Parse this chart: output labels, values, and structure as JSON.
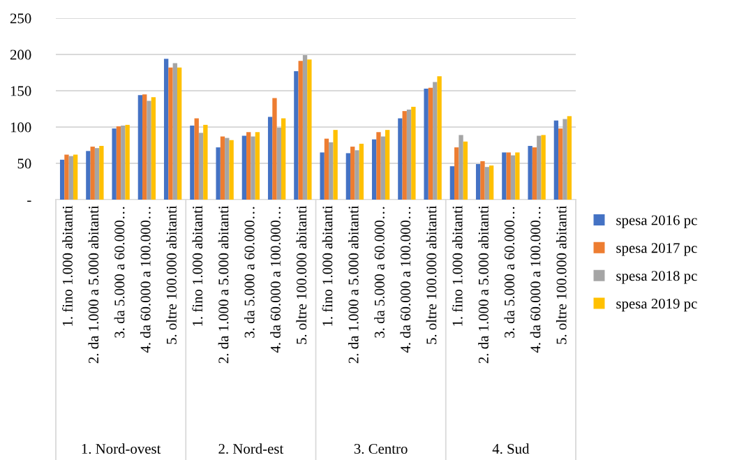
{
  "chart_data": {
    "type": "bar",
    "categories": [
      "1. fino 1.000 abitanti",
      "2. da 1.000 a 5.000 abitanti",
      "3. da 5.000 a 60.000…",
      "4. da 60.000 a 100.000…",
      "5. oltre 100.000 abitanti",
      "1. fino 1.000 abitanti",
      "2. da 1.000 a 5.000 abitanti",
      "3. da 5.000 a 60.000…",
      "4. da 60.000 a 100.000…",
      "5. oltre 100.000 abitanti",
      "1. fino 1.000 abitanti",
      "2. da 1.000 a 5.000 abitanti",
      "3. da 5.000 a 60.000…",
      "4. da 60.000 a 100.000…",
      "5. oltre 100.000 abitanti",
      "1. fino 1.000 abitanti",
      "2. da 1.000 a 5.000 abitanti",
      "3. da 5.000 a 60.000…",
      "4. da 60.000 a 100.000…",
      "5. oltre 100.000 abitanti"
    ],
    "series": [
      {
        "name": "spesa 2016 pc",
        "color": "#4472c4",
        "values": [
          55,
          67,
          98,
          144,
          194,
          102,
          72,
          88,
          114,
          177,
          65,
          64,
          83,
          112,
          153,
          46,
          49,
          65,
          74,
          109
        ]
      },
      {
        "name": "spesa 2017 pc",
        "color": "#ed7d31",
        "values": [
          62,
          73,
          101,
          145,
          182,
          112,
          87,
          93,
          140,
          191,
          84,
          73,
          93,
          122,
          154,
          72,
          53,
          65,
          72,
          98
        ]
      },
      {
        "name": "spesa 2018 pc",
        "color": "#a5a5a5",
        "values": [
          60,
          71,
          102,
          136,
          188,
          92,
          85,
          87,
          99,
          199,
          79,
          68,
          87,
          124,
          162,
          89,
          45,
          61,
          88,
          111
        ]
      },
      {
        "name": "spesa 2019 pc",
        "color": "#ffc000",
        "values": [
          62,
          74,
          103,
          141,
          182,
          103,
          82,
          93,
          112,
          193,
          96,
          77,
          96,
          128,
          170,
          80,
          47,
          65,
          89,
          115
        ]
      }
    ],
    "annotations": [
      "1. Nord-ovest",
      "2. Nord-est",
      "3. Centro",
      "4. Sud"
    ],
    "ylim": [
      0,
      250
    ],
    "yticks": [
      {
        "value": 0,
        "label": "-"
      },
      50,
      100,
      150,
      200,
      250
    ],
    "grid": "y",
    "legend": "right"
  }
}
